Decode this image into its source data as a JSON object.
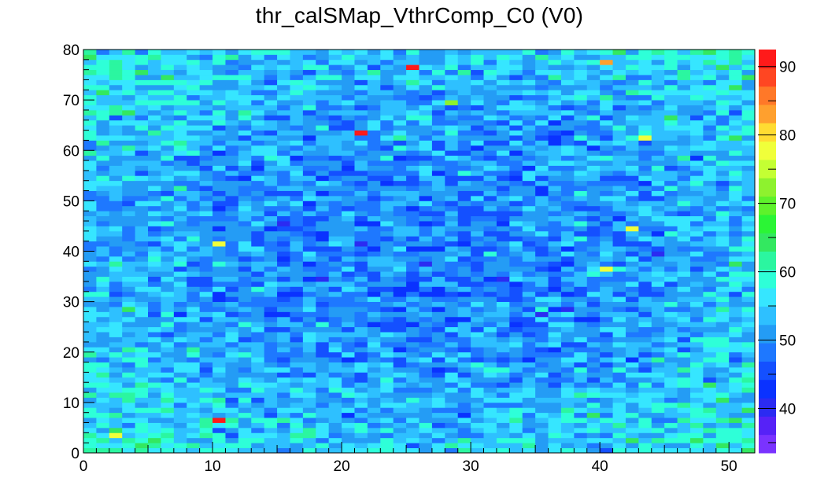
{
  "chart_data": {
    "type": "heatmap",
    "title": "thr_calSMap_VthrComp_C0 (V0)",
    "xlabel": "",
    "ylabel": "",
    "xlim": [
      0,
      52
    ],
    "ylim": [
      0,
      80
    ],
    "nx": 52,
    "ny": 80,
    "x_ticks": [
      0,
      10,
      20,
      30,
      40,
      50
    ],
    "y_ticks": [
      0,
      10,
      20,
      30,
      40,
      50,
      60,
      70,
      80
    ],
    "z_range": [
      33.5,
      92.5
    ],
    "z_ticks": [
      40,
      50,
      60,
      70,
      80,
      90
    ],
    "baseline_value": 49,
    "hot_pixels": [
      {
        "x": 25.5,
        "y": 76.5,
        "value": 92
      },
      {
        "x": 21.5,
        "y": 63.5,
        "value": 92
      },
      {
        "x": 10.5,
        "y": 6.5,
        "value": 91
      },
      {
        "x": 40.5,
        "y": 77.5,
        "value": 83
      },
      {
        "x": 43.5,
        "y": 62.5,
        "value": 79
      },
      {
        "x": 42.5,
        "y": 44.5,
        "value": 79
      },
      {
        "x": 10.5,
        "y": 41.5,
        "value": 79
      },
      {
        "x": 40.5,
        "y": 36.5,
        "value": 79
      },
      {
        "x": 2.5,
        "y": 3.5,
        "value": 79
      },
      {
        "x": 28.5,
        "y": 69.5,
        "value": 73
      }
    ],
    "palette_colors": [
      "#7a33ff",
      "#5622f7",
      "#2b2bf2",
      "#0a32ff",
      "#1450ff",
      "#1e78ff",
      "#249cf5",
      "#2ec0ff",
      "#36e6ff",
      "#2effd8",
      "#2bf6a0",
      "#33e860",
      "#2bf535",
      "#5ef22b",
      "#8ef22e",
      "#c4ff33",
      "#f0ff3a",
      "#ffdc32",
      "#ffa02e",
      "#ff7828",
      "#ff4622",
      "#ff1a1a"
    ]
  }
}
